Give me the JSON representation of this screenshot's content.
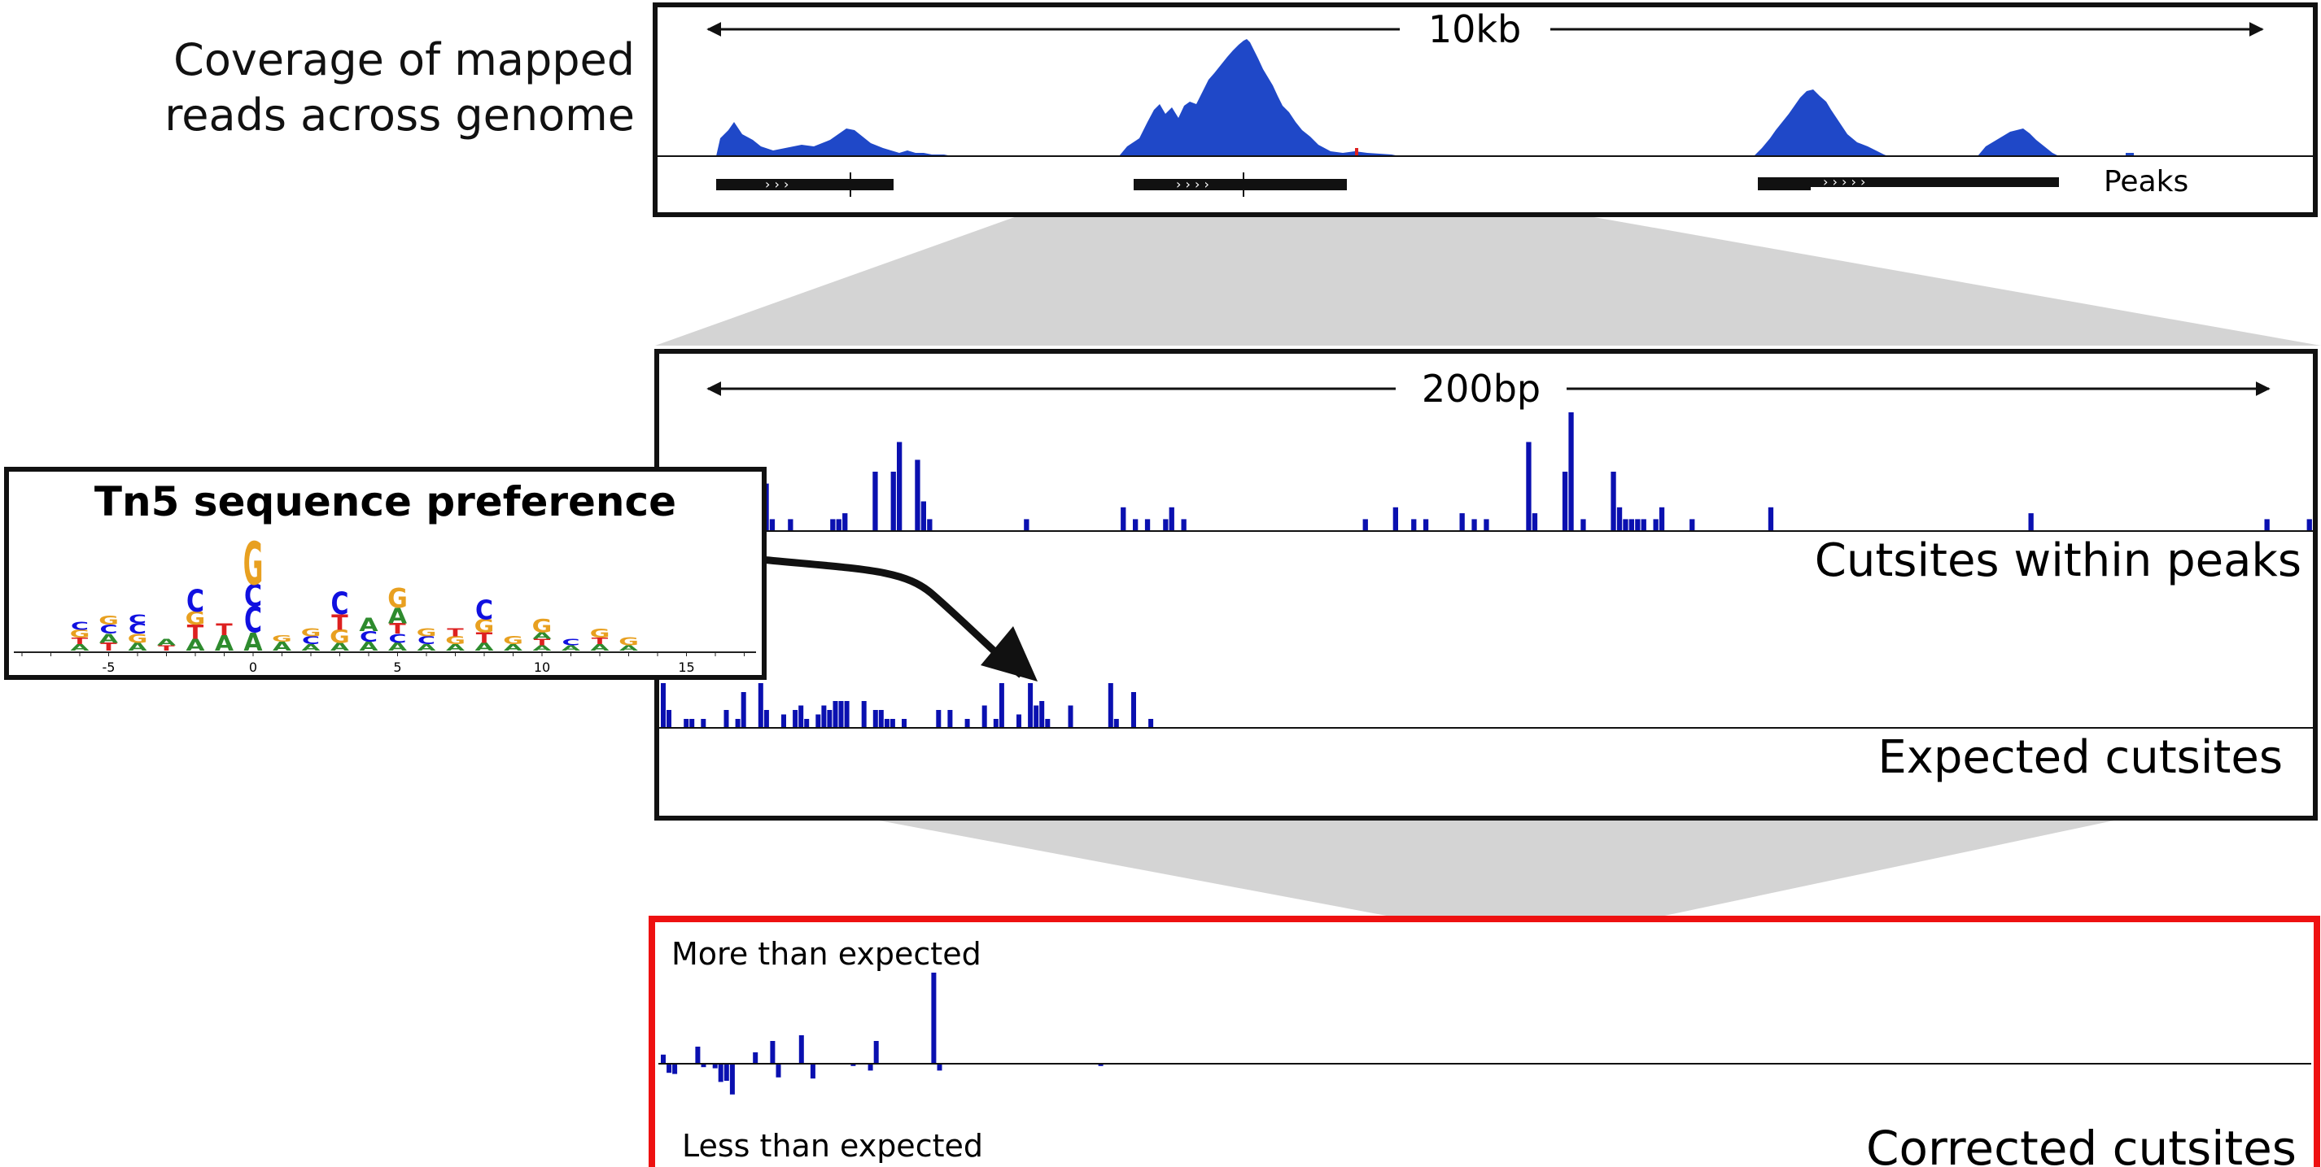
{
  "coverage": {
    "label_line1": "Coverage of mapped",
    "label_line2": "reads across genome",
    "scale_label": "10kb",
    "peaks_label": "Peaks",
    "fill_color": "#1f48c8",
    "peak_count": 3
  },
  "zoom": {
    "scale_label": "200bp",
    "observed_label": "Cutsites within peaks",
    "expected_label": "Expected cutsites",
    "observed_cutsites": [
      0,
      0,
      0,
      0,
      0,
      0,
      0,
      0,
      0,
      0,
      0,
      0,
      2,
      3,
      0,
      0,
      4,
      8,
      2,
      0,
      0,
      2,
      0,
      0,
      0,
      0,
      0,
      0,
      2,
      2,
      3,
      0,
      0,
      0,
      0,
      10,
      0,
      0,
      10,
      15,
      0,
      0,
      12,
      5,
      2,
      0,
      0,
      0,
      0,
      0,
      0,
      0,
      0,
      0,
      0,
      0,
      0,
      0,
      0,
      0,
      2,
      0,
      0,
      0,
      0,
      0,
      0,
      0,
      0,
      0,
      0,
      0,
      0,
      0,
      0,
      0,
      4,
      0,
      2,
      0,
      2,
      0,
      0,
      2,
      4,
      0,
      2,
      0,
      0,
      0,
      0,
      0,
      0,
      0,
      0,
      0,
      0,
      0,
      0,
      0,
      0,
      0,
      0,
      0,
      0,
      0,
      0,
      0,
      0,
      0,
      0,
      0,
      0,
      0,
      0,
      0,
      2,
      0,
      0,
      0,
      0,
      4,
      0,
      0,
      2,
      0,
      2,
      0,
      0,
      0,
      0,
      0,
      3,
      0,
      2,
      0,
      2,
      0,
      0,
      0,
      0,
      0,
      0,
      15,
      3,
      0,
      0,
      0,
      0,
      10,
      20,
      0,
      2,
      0,
      0,
      0,
      0,
      10,
      4,
      2,
      2,
      2,
      2,
      0,
      2,
      4,
      0,
      0,
      0,
      0,
      2,
      0,
      0,
      0,
      0,
      0,
      0,
      0,
      0,
      0,
      0,
      0,
      0,
      4,
      0,
      0,
      0,
      0,
      0,
      0,
      0,
      0,
      0,
      0,
      0,
      0,
      0,
      0,
      0,
      0,
      0,
      0,
      0,
      0,
      0,
      0,
      0,
      0,
      0,
      0,
      0,
      0,
      0,
      0,
      0,
      0,
      0,
      0,
      0,
      0,
      0,
      0,
      0,
      0,
      0,
      0,
      3,
      0,
      0,
      0,
      0,
      0,
      0,
      0,
      0,
      0,
      0,
      0,
      0,
      0,
      0,
      0,
      0,
      0,
      0,
      0,
      0,
      0,
      0,
      0,
      0,
      0,
      0,
      0,
      0,
      0,
      0,
      0,
      0,
      0,
      0,
      0,
      0,
      0,
      0,
      2,
      0,
      0,
      0,
      0,
      0,
      0,
      2
    ],
    "expected_cutsites": [
      10,
      4,
      0,
      0,
      2,
      2,
      0,
      2,
      0,
      0,
      0,
      4,
      0,
      2,
      8,
      0,
      0,
      10,
      4,
      0,
      0,
      3,
      0,
      4,
      5,
      2,
      0,
      3,
      5,
      4,
      6,
      6,
      6,
      0,
      0,
      6,
      0,
      4,
      4,
      2,
      2,
      0,
      2,
      0,
      0,
      0,
      0,
      0,
      4,
      0,
      4,
      0,
      0,
      2,
      0,
      0,
      5,
      0,
      2,
      10,
      0,
      0,
      3,
      0,
      10,
      5,
      6,
      2,
      0,
      0,
      0,
      5,
      0,
      0,
      0,
      0,
      0,
      0,
      10,
      2,
      0,
      0,
      8,
      0,
      0,
      2,
      0,
      0,
      0,
      0,
      0,
      0,
      0,
      0,
      0,
      0,
      0,
      0,
      0,
      0,
      0,
      0,
      0,
      0,
      0,
      0,
      0,
      0,
      0,
      0,
      0,
      0,
      0,
      0,
      0,
      0,
      0,
      0,
      0,
      0,
      0,
      0,
      0,
      0,
      0,
      0,
      0,
      0,
      0,
      0,
      0,
      0,
      0,
      0,
      0,
      0,
      0,
      0,
      0,
      0,
      0,
      0,
      0,
      0,
      0,
      0,
      0,
      0,
      0,
      0,
      0,
      0,
      0,
      0,
      0,
      0,
      0,
      0,
      0,
      0,
      0,
      0,
      0,
      0,
      0,
      0,
      0,
      0,
      0,
      0,
      0,
      0,
      0,
      0,
      0,
      0,
      0,
      0,
      0,
      0,
      0,
      0,
      0,
      0,
      0,
      0,
      0,
      0,
      0,
      0,
      0,
      0,
      0,
      0,
      0,
      0,
      0,
      0,
      0,
      0,
      0,
      0,
      0,
      0,
      0,
      0,
      0,
      0,
      0,
      0,
      0,
      0,
      0,
      0,
      0,
      0,
      0,
      0,
      0,
      0,
      0,
      0,
      0,
      0,
      0,
      0,
      0,
      0,
      0,
      0,
      0,
      0,
      0,
      0,
      0,
      0,
      0,
      0,
      0,
      0,
      0,
      0,
      0,
      0,
      0,
      0,
      0,
      0,
      0,
      0,
      0,
      0,
      0,
      0,
      0,
      0,
      0,
      0,
      0,
      0,
      0,
      0,
      0,
      0,
      0,
      0,
      0,
      0,
      0,
      0,
      0,
      0,
      0,
      0,
      0,
      0,
      0,
      0,
      0,
      0,
      0,
      0,
      0,
      0,
      0,
      0,
      0,
      0
    ],
    "bar_color": "#0a10b0"
  },
  "motif": {
    "title": "Tn5 sequence preference",
    "tick_labels": [
      "-5",
      "0",
      "5",
      "10",
      "15"
    ],
    "colors": {
      "A": "#2e8b2e",
      "C": "#1010e0",
      "G": "#e8a020",
      "T": "#dd2020"
    },
    "columns": [
      {
        "pos": -6,
        "letters": [
          [
            "A",
            0.05
          ],
          [
            "T",
            0.05
          ],
          [
            "G",
            0.06
          ],
          [
            "C",
            0.06
          ]
        ]
      },
      {
        "pos": -5,
        "letters": [
          [
            "T",
            0.06
          ],
          [
            "A",
            0.07
          ],
          [
            "C",
            0.07
          ],
          [
            "G",
            0.07
          ]
        ]
      },
      {
        "pos": -4,
        "letters": [
          [
            "A",
            0.06
          ],
          [
            "G",
            0.07
          ],
          [
            "C",
            0.08
          ],
          [
            "C",
            0.07
          ]
        ]
      },
      {
        "pos": -3,
        "letters": [
          [
            "T",
            0.04
          ],
          [
            "A",
            0.05
          ]
        ]
      },
      {
        "pos": -2,
        "letters": [
          [
            "A",
            0.09
          ],
          [
            "T",
            0.11
          ],
          [
            "G",
            0.1
          ],
          [
            "C",
            0.17
          ]
        ]
      },
      {
        "pos": -1,
        "letters": [
          [
            "A",
            0.12
          ],
          [
            "T",
            0.09
          ]
        ]
      },
      {
        "pos": 0,
        "letters": [
          [
            "A",
            0.14
          ],
          [
            "C",
            0.2
          ],
          [
            "C",
            0.17
          ],
          [
            "G",
            0.33
          ]
        ]
      },
      {
        "pos": 1,
        "letters": [
          [
            "A",
            0.07
          ],
          [
            "G",
            0.05
          ]
        ]
      },
      {
        "pos": 2,
        "letters": [
          [
            "A",
            0.05
          ],
          [
            "C",
            0.06
          ],
          [
            "G",
            0.06
          ]
        ]
      },
      {
        "pos": 3,
        "letters": [
          [
            "A",
            0.06
          ],
          [
            "G",
            0.1
          ],
          [
            "T",
            0.12
          ],
          [
            "C",
            0.17
          ]
        ]
      },
      {
        "pos": 4,
        "letters": [
          [
            "A",
            0.07
          ],
          [
            "C",
            0.08
          ],
          [
            "A",
            0.1
          ]
        ]
      },
      {
        "pos": 5,
        "letters": [
          [
            "A",
            0.06
          ],
          [
            "C",
            0.07
          ],
          [
            "T",
            0.08
          ],
          [
            "A",
            0.12
          ],
          [
            "G",
            0.15
          ]
        ]
      },
      {
        "pos": 6,
        "letters": [
          [
            "A",
            0.05
          ],
          [
            "C",
            0.06
          ],
          [
            "G",
            0.06
          ]
        ]
      },
      {
        "pos": 7,
        "letters": [
          [
            "A",
            0.05
          ],
          [
            "G",
            0.06
          ],
          [
            "T",
            0.06
          ]
        ]
      },
      {
        "pos": 8,
        "letters": [
          [
            "A",
            0.06
          ],
          [
            "T",
            0.08
          ],
          [
            "G",
            0.1
          ],
          [
            "C",
            0.15
          ]
        ]
      },
      {
        "pos": 9,
        "letters": [
          [
            "A",
            0.05
          ],
          [
            "G",
            0.06
          ]
        ]
      },
      {
        "pos": 10,
        "letters": [
          [
            "A",
            0.04
          ],
          [
            "T",
            0.05
          ],
          [
            "A",
            0.05
          ],
          [
            "G",
            0.1
          ]
        ]
      },
      {
        "pos": 11,
        "letters": [
          [
            "A",
            0.04
          ],
          [
            "C",
            0.05
          ]
        ]
      },
      {
        "pos": 12,
        "letters": [
          [
            "A",
            0.05
          ],
          [
            "T",
            0.05
          ],
          [
            "G",
            0.07
          ]
        ]
      },
      {
        "pos": 13,
        "letters": [
          [
            "A",
            0.04
          ],
          [
            "G",
            0.06
          ]
        ]
      }
    ]
  },
  "corrected": {
    "more_label": "More than expected",
    "less_label": "Less than expected",
    "title": "Corrected cutsites",
    "border_color": "#ee1111",
    "values": [
      0.8,
      -0.8,
      -0.9,
      0,
      0,
      0,
      1.5,
      -0.3,
      0,
      -0.4,
      -1.6,
      -1.5,
      -2.7,
      0,
      0,
      0,
      1,
      0,
      0,
      2,
      -1.2,
      0,
      0,
      0,
      2.5,
      0,
      -1.3,
      0,
      0,
      0,
      0,
      0,
      0,
      -0.2,
      0,
      0,
      -0.6,
      2,
      0,
      0,
      0,
      0,
      0,
      0,
      0,
      0,
      0,
      8,
      -0.6,
      0,
      0,
      0,
      0,
      0,
      0,
      0,
      0,
      0,
      0,
      0,
      0,
      0,
      0,
      0,
      0,
      0,
      0,
      0,
      0,
      0,
      0,
      0,
      0,
      0,
      0,
      0,
      -0.2,
      0,
      0,
      0,
      0,
      0,
      0,
      0,
      0,
      0,
      0,
      0,
      0,
      0,
      0,
      0,
      0,
      0,
      0,
      0,
      0,
      0,
      0,
      0,
      0,
      0,
      0,
      0,
      0,
      0,
      0,
      0,
      0,
      0,
      0,
      0,
      0,
      0,
      0,
      0,
      0,
      0,
      0,
      0,
      0,
      0,
      0,
      0,
      0,
      0,
      0,
      0,
      0,
      0,
      0,
      0,
      0,
      0,
      0,
      0,
      0,
      0,
      0,
      0,
      0,
      0,
      0,
      0,
      0,
      0,
      0,
      0,
      0,
      0,
      0,
      0,
      0,
      0,
      0,
      0,
      0,
      0,
      0,
      0,
      0,
      0,
      0,
      0,
      0,
      0,
      0,
      0,
      0,
      0,
      0,
      0,
      0,
      0,
      0,
      0,
      0,
      0,
      0,
      0,
      0,
      0,
      0,
      0,
      0,
      0,
      0,
      0,
      0,
      0,
      0,
      0,
      0,
      0,
      0,
      0,
      0,
      0,
      0,
      0,
      0,
      0,
      0,
      0,
      0,
      0,
      0,
      0,
      0,
      0,
      0,
      0,
      0,
      0,
      0,
      0,
      0,
      0,
      0,
      0,
      0,
      0,
      0,
      0,
      0,
      0,
      0,
      0,
      0,
      0,
      0,
      0,
      0,
      0,
      0,
      0,
      0,
      0,
      0,
      0,
      0,
      0,
      0,
      0,
      0,
      0,
      0,
      0,
      0,
      0,
      0,
      0,
      0,
      0,
      0,
      0,
      0,
      0,
      0,
      0,
      0,
      0,
      0,
      0,
      0,
      0,
      0,
      0,
      0,
      0,
      0,
      0,
      0,
      0,
      0,
      0,
      0,
      0,
      0,
      0,
      0,
      0,
      0,
      0,
      0,
      0,
      0
    ]
  }
}
